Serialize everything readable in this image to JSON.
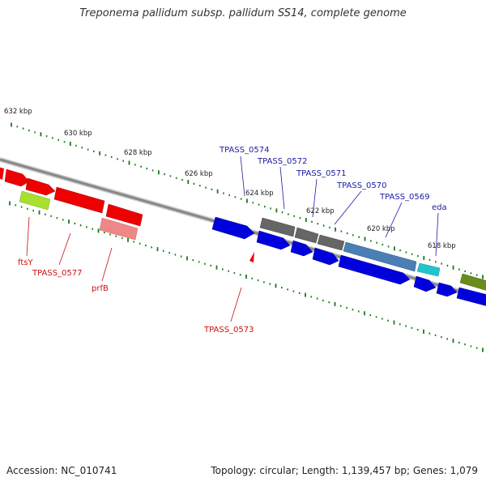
{
  "title": "Treponema pallidum subsp. pallidum SS14, complete genome",
  "accession": "Accession: NC_010741",
  "stats": "Topology: circular; Length: 1,139,457 bp; Genes: 1,079",
  "scale_labels": [
    "632 kbp",
    "630 kbp",
    "628 kbp",
    "626 kbp",
    "624 kbp",
    "622 kbp",
    "620 kbp",
    "618 kbp"
  ],
  "genes_forward": [
    {
      "name": "TPASS_0574",
      "color": "#1a1aa6"
    },
    {
      "name": "TPASS_0572",
      "color": "#1a1aa6"
    },
    {
      "name": "TPASS_0571",
      "color": "#1a1aa6"
    },
    {
      "name": "TPASS_0570",
      "color": "#1a1aa6"
    },
    {
      "name": "TPASS_0569",
      "color": "#1a1aa6"
    },
    {
      "name": "eda",
      "color": "#1a1aa6"
    }
  ],
  "genes_reverse": [
    {
      "name": "ftsY",
      "color": "#cc1111"
    },
    {
      "name": "TPASS_0577",
      "color": "#cc1111"
    },
    {
      "name": "prfB",
      "color": "#cc1111"
    },
    {
      "name": "TPASS_0573",
      "color": "#cc1111"
    }
  ],
  "colors": {
    "backbone": "#888888",
    "tick": "#1a7a1a",
    "cds_forward": "#0000dd",
    "cds_reverse": "#ee0000",
    "grey_feature": "#666666",
    "steel_feature": "#4a7fb5",
    "cyan_feature": "#22c4cc",
    "lime_feature": "#a8e030",
    "pink_feature": "#ee8888",
    "olive_feature": "#6a8c1a"
  }
}
